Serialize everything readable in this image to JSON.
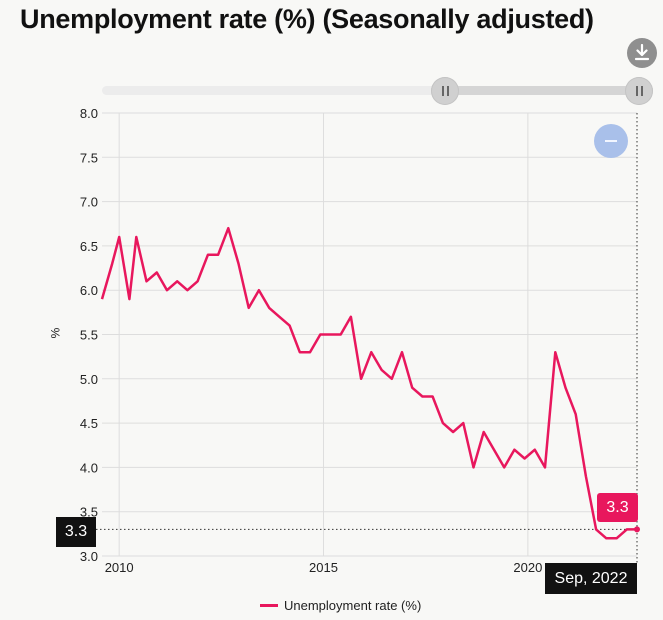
{
  "title": "Unemployment rate (%) (Seasonally adjusted)",
  "colors": {
    "series": "#e8175d",
    "tooltip_bg": "#111111",
    "badge_bg": "#e8175d",
    "grid": "#dddddd"
  },
  "controls": {
    "download_icon": "download-icon",
    "zoom_icon": "minus-icon"
  },
  "tooltip": {
    "y_value": "3.3",
    "point_value": "3.3",
    "date": "Sep, 2022"
  },
  "chart_data": {
    "type": "line",
    "title": "Unemployment rate (%) (Seasonally adjusted)",
    "xlabel": "",
    "ylabel": "%",
    "xlim": [
      2009.58,
      2022.67
    ],
    "ylim": [
      3.0,
      8.0
    ],
    "xticks": [
      2010,
      2015,
      2020
    ],
    "xtick_labels": [
      "2010",
      "2015",
      "2020"
    ],
    "yticks": [
      3.0,
      3.5,
      4.0,
      4.5,
      5.0,
      5.5,
      6.0,
      6.5,
      7.0,
      7.5,
      8.0
    ],
    "ytick_labels": [
      "3.0",
      "3.5",
      "4.0",
      "4.5",
      "5.0",
      "5.5",
      "6.0",
      "6.5",
      "7.0",
      "7.5",
      "8.0"
    ],
    "grid": true,
    "legend": "bottom-center",
    "series": [
      {
        "name": "Unemployment rate (%)",
        "color": "#e8175d",
        "x": [
          2009.58,
          2009.83,
          2010.0,
          2010.25,
          2010.42,
          2010.67,
          2010.92,
          2011.17,
          2011.42,
          2011.67,
          2011.92,
          2012.17,
          2012.42,
          2012.67,
          2012.92,
          2013.17,
          2013.42,
          2013.67,
          2013.92,
          2014.17,
          2014.42,
          2014.67,
          2014.92,
          2015.17,
          2015.42,
          2015.67,
          2015.92,
          2016.17,
          2016.42,
          2016.67,
          2016.92,
          2017.17,
          2017.42,
          2017.67,
          2017.92,
          2018.17,
          2018.42,
          2018.67,
          2018.92,
          2019.17,
          2019.42,
          2019.67,
          2019.92,
          2020.17,
          2020.42,
          2020.67,
          2020.92,
          2021.17,
          2021.42,
          2021.67,
          2021.92,
          2022.17,
          2022.42,
          2022.67
        ],
        "y": [
          5.9,
          6.3,
          6.6,
          5.9,
          6.6,
          6.1,
          6.2,
          6.0,
          6.1,
          6.0,
          6.1,
          6.4,
          6.4,
          6.7,
          6.3,
          5.8,
          6.0,
          5.8,
          5.7,
          5.6,
          5.3,
          5.3,
          5.5,
          5.5,
          5.5,
          5.7,
          5.0,
          5.3,
          5.1,
          5.0,
          5.3,
          4.9,
          4.8,
          4.8,
          4.5,
          4.4,
          4.5,
          4.0,
          4.4,
          4.2,
          4.0,
          4.2,
          4.1,
          4.2,
          4.0,
          5.3,
          4.9,
          4.6,
          3.9,
          3.3,
          3.2,
          3.2,
          3.3,
          3.3
        ]
      }
    ]
  }
}
